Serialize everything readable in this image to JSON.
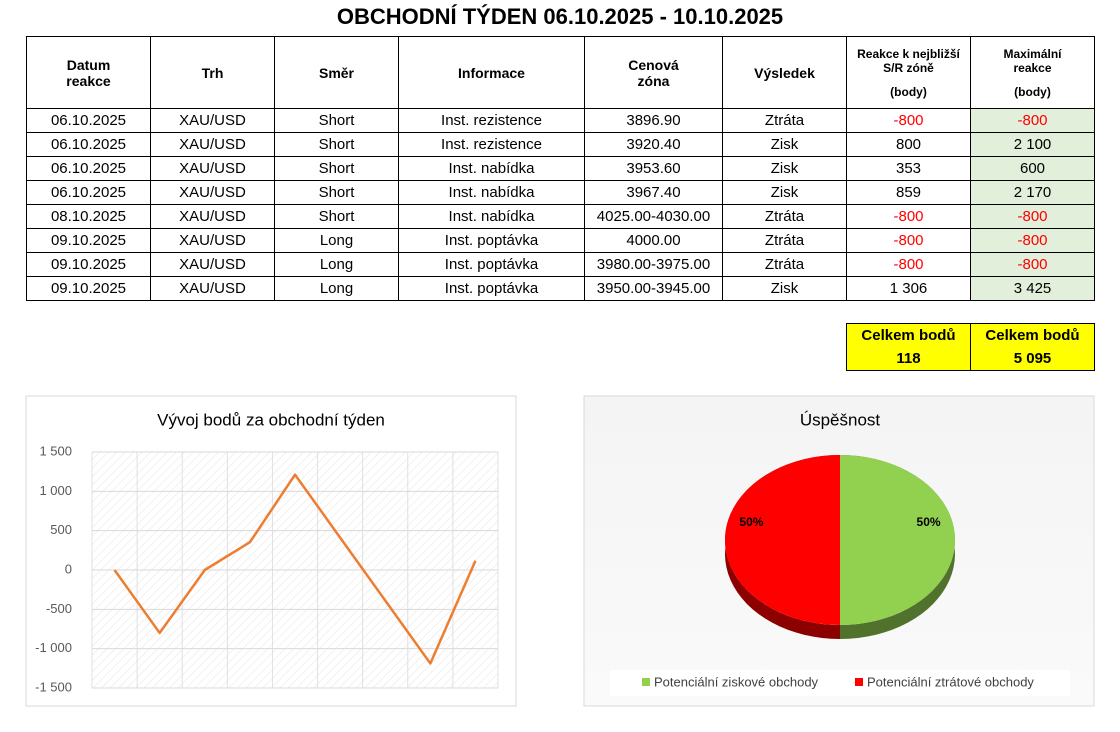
{
  "title": "OBCHODNÍ TÝDEN 06.10.2025 - 10.10.2025",
  "table": {
    "header": [
      [
        "Datum",
        "reakce"
      ],
      [
        "Trh"
      ],
      [
        "Směr"
      ],
      [
        "Informace"
      ],
      [
        "Cenová",
        "zóna"
      ],
      [
        "Výsledek"
      ],
      [
        "Reakce k nejbližší",
        "S/R zóně",
        "(body)"
      ],
      [
        "Maximální",
        "reakce",
        "(body)"
      ]
    ],
    "rows": [
      [
        "06.10.2025",
        "XAU/USD",
        "Short",
        "Inst. rezistence",
        "3896.90",
        "Ztráta",
        "-800",
        "-800"
      ],
      [
        "06.10.2025",
        "XAU/USD",
        "Short",
        "Inst. rezistence",
        "3920.40",
        "Zisk",
        "800",
        "2 100"
      ],
      [
        "06.10.2025",
        "XAU/USD",
        "Short",
        "Inst. nabídka",
        "3953.60",
        "Zisk",
        "353",
        "600"
      ],
      [
        "06.10.2025",
        "XAU/USD",
        "Short",
        "Inst. nabídka",
        "3967.40",
        "Zisk",
        "859",
        "2 170"
      ],
      [
        "08.10.2025",
        "XAU/USD",
        "Short",
        "Inst. nabídka",
        "4025.00-4030.00",
        "Ztráta",
        "-800",
        "-800"
      ],
      [
        "09.10.2025",
        "XAU/USD",
        "Long",
        "Inst. poptávka",
        "4000.00",
        "Ztráta",
        "-800",
        "-800"
      ],
      [
        "09.10.2025",
        "XAU/USD",
        "Long",
        "Inst. poptávka",
        "3980.00-3975.00",
        "Ztráta",
        "-800",
        "-800"
      ],
      [
        "09.10.2025",
        "XAU/USD",
        "Long",
        "Inst. poptávka",
        "3950.00-3945.00",
        "Zisk",
        "1 306",
        "3 425"
      ]
    ]
  },
  "totals": {
    "labels": [
      "Celkem bodů",
      "Celkem bodů"
    ],
    "values": [
      "118",
      "5 095"
    ]
  },
  "chart_data": [
    {
      "type": "line",
      "title": "Vývoj bodů za obchodní týden",
      "categories": [
        null,
        null,
        null,
        null,
        null,
        null,
        null,
        null,
        null
      ],
      "values": [
        0,
        -800,
        0,
        353,
        1212,
        412,
        -388,
        -1188,
        118
      ],
      "color": "#ed7d31",
      "ylim": [
        -1500,
        1500
      ],
      "yticks": [
        {
          "value": -1500,
          "label": "-1 500"
        },
        {
          "value": -1000,
          "label": "-1 000"
        },
        -500,
        0,
        500,
        {
          "value": 1000,
          "label": "1 000"
        },
        {
          "value": 1500,
          "label": "1 500"
        }
      ],
      "grid": true
    },
    {
      "type": "pie",
      "title": "Úspěšnost",
      "categories": [
        "Potenciální ziskové obchody",
        "Potenciální ztrátové obchody"
      ],
      "values": [
        50,
        50
      ],
      "value_labels": [
        "50%",
        "50%"
      ],
      "colors": [
        "#92d050",
        "#ff0000"
      ],
      "legend": "bottom"
    }
  ]
}
